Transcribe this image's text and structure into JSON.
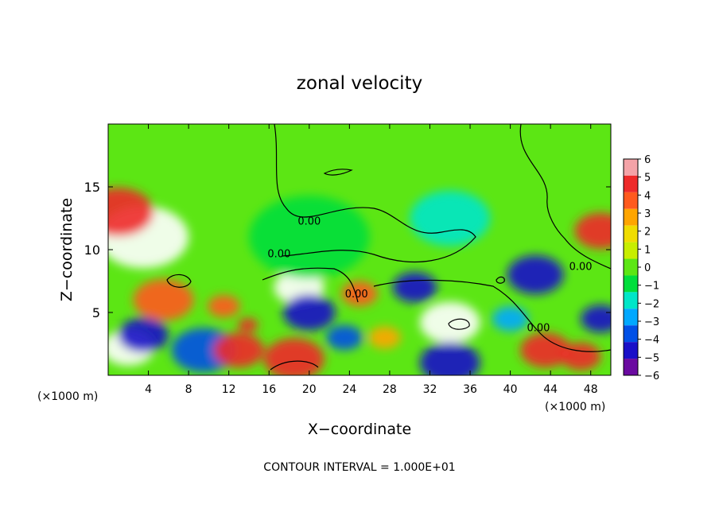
{
  "chart_data": {
    "type": "heatmap",
    "title": "zonal velocity",
    "xlabel": "X−coordinate",
    "ylabel": "Z−coordinate",
    "x_unit_left": "(×1000 m)",
    "x_unit_right": "(×1000 m)",
    "footer": "CONTOUR INTERVAL = 1.000E+01",
    "xlim": [
      0,
      50
    ],
    "ylim": [
      0,
      20
    ],
    "x_ticks": [
      4,
      8,
      12,
      16,
      20,
      24,
      28,
      32,
      36,
      40,
      44,
      48
    ],
    "x_tick_labels": [
      "4",
      "8",
      "12",
      "16",
      "20",
      "24",
      "28",
      "32",
      "36",
      "40",
      "44",
      "48"
    ],
    "y_ticks": [
      5,
      10,
      15
    ],
    "y_tick_labels": [
      "5",
      "10",
      "15"
    ],
    "colorbar": {
      "min": -6,
      "max": 6,
      "tick_values": [
        6,
        5,
        4,
        3,
        2,
        1,
        0,
        -1,
        -2,
        -3,
        -4,
        -5,
        -6
      ],
      "tick_labels": [
        "6",
        "5",
        "4",
        "3",
        "2",
        "1",
        "0",
        "−1",
        "−2",
        "−3",
        "−4",
        "−5",
        "−6"
      ],
      "colors": [
        "#f4a3a8",
        "#ee2a2a",
        "#ff5a1e",
        "#ffa500",
        "#f0dc00",
        "#c8ee00",
        "#5ce614",
        "#00de3c",
        "#00e6c8",
        "#00a8ff",
        "#0050e6",
        "#1a10c8",
        "#6a0aa0"
      ]
    },
    "contour_labels": [
      {
        "text": "0.00",
        "x": 20.0,
        "z": 12.0
      },
      {
        "text": "0.00",
        "x": 17.0,
        "z": 9.4
      },
      {
        "text": "0.00",
        "x": 24.7,
        "z": 6.2
      },
      {
        "text": "0.00",
        "x": 42.8,
        "z": 3.5
      },
      {
        "text": "0.00",
        "x": 47.0,
        "z": 8.4
      }
    ],
    "features": [
      {
        "x": 3.5,
        "z": 11.0,
        "value": 6,
        "r": 4.5
      },
      {
        "x": 1.0,
        "z": 13.0,
        "value": 5,
        "r": 3.5
      },
      {
        "x": 5.5,
        "z": 6.0,
        "value": 4,
        "r": 3.0
      },
      {
        "x": 2.0,
        "z": 2.2,
        "value": 6,
        "r": 2.6
      },
      {
        "x": 3.5,
        "z": 3.2,
        "value": -5,
        "r": 2.5
      },
      {
        "x": 9.5,
        "z": 2.0,
        "value": -4,
        "r": 3.2
      },
      {
        "x": 13.0,
        "z": 2.0,
        "value": 5,
        "r": 2.5
      },
      {
        "x": 11.5,
        "z": 5.5,
        "value": 4,
        "r": 1.6
      },
      {
        "x": 13.9,
        "z": 4.0,
        "value": 5,
        "r": 1.0
      },
      {
        "x": 19.0,
        "z": 7.0,
        "value": 6,
        "r": 2.5
      },
      {
        "x": 20.0,
        "z": 5.0,
        "value": -5,
        "r": 2.6
      },
      {
        "x": 18.5,
        "z": 1.3,
        "value": 5,
        "r": 3.0
      },
      {
        "x": 25.0,
        "z": 6.5,
        "value": 4,
        "r": 1.8
      },
      {
        "x": 23.5,
        "z": 3.0,
        "value": -4,
        "r": 1.8
      },
      {
        "x": 27.5,
        "z": 3.0,
        "value": 3,
        "r": 1.6
      },
      {
        "x": 30.5,
        "z": 7.0,
        "value": -5,
        "r": 2.2
      },
      {
        "x": 34.0,
        "z": 4.2,
        "value": 6,
        "r": 3.0
      },
      {
        "x": 34.0,
        "z": 1.0,
        "value": -5,
        "r": 3.0
      },
      {
        "x": 40.0,
        "z": 4.5,
        "value": -3,
        "r": 1.8
      },
      {
        "x": 42.5,
        "z": 8.0,
        "value": -5,
        "r": 2.8
      },
      {
        "x": 43.5,
        "z": 2.0,
        "value": 5,
        "r": 2.5
      },
      {
        "x": 49.0,
        "z": 11.5,
        "value": 5,
        "r": 2.6
      },
      {
        "x": 49.0,
        "z": 4.5,
        "value": -5,
        "r": 2.0
      },
      {
        "x": 47.0,
        "z": 1.5,
        "value": 5,
        "r": 2.0
      },
      {
        "x": 34.0,
        "z": 12.5,
        "value": -2,
        "r": 4.0
      },
      {
        "x": 20.0,
        "z": 11.0,
        "value": -1,
        "r": 6.0
      }
    ]
  }
}
